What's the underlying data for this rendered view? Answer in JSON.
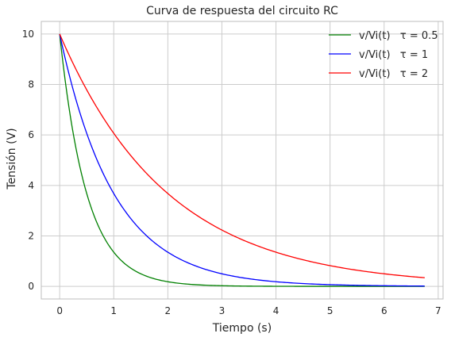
{
  "chart_data": {
    "type": "line",
    "title": "Curva de respuesta del circuito RC",
    "xlabel": "Tiempo (s)",
    "ylabel": "Tensión (V)",
    "xlim": [
      -0.34,
      7.09
    ],
    "ylim": [
      -0.5,
      10.5
    ],
    "xticks": [
      0,
      1,
      2,
      3,
      4,
      5,
      6,
      7
    ],
    "yticks": [
      0,
      2,
      4,
      6,
      8,
      10
    ],
    "grid": true,
    "legend_position": "top-right",
    "initial_value": 10,
    "t_max": 6.75,
    "series": [
      {
        "name": "v/Vi(t)   τ = 0.5",
        "tau": 0.5,
        "color": "#008000"
      },
      {
        "name": "v/Vi(t)   τ = 1",
        "tau": 1,
        "color": "#0000ff"
      },
      {
        "name": "v/Vi(t)   τ = 2",
        "tau": 2,
        "color": "#ff0000"
      }
    ]
  }
}
